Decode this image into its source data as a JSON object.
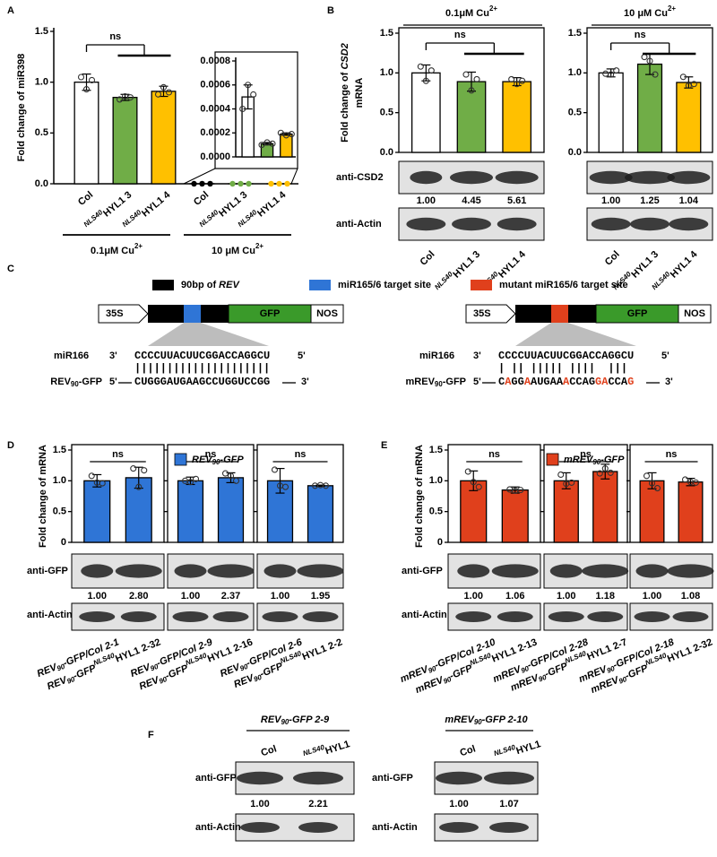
{
  "panels": {
    "A": {
      "letter": "A",
      "groups": [
        {
          "t": "0.1μM Cu",
          "sup": "2+"
        },
        {
          "t": "10 μM Cu",
          "sup": "2+"
        }
      ]
    },
    "B": {
      "letter": "B",
      "headers": [
        {
          "t": "0.1μM Cu",
          "sup": "2+"
        },
        {
          "t": "10 μM Cu",
          "sup": "2+"
        }
      ],
      "antibodies": [
        "anti-CSD2",
        "anti-Actin"
      ],
      "quantities": [
        [
          "1.00",
          "4.45",
          "5.61"
        ],
        [
          "1.00",
          "1.25",
          "1.04"
        ]
      ]
    },
    "C": {
      "letter": "C",
      "legend": [
        {
          "color": "#000000",
          "label": {
            "t": "90bp of ",
            "i": "REV"
          }
        },
        {
          "color": "#2f75d6",
          "label": "miR165/6 target site"
        },
        {
          "color": "#e0401c",
          "label": "mutant miR165/6 target site"
        }
      ],
      "constructs": [
        {
          "promoter": "35S",
          "reporter": "GFP",
          "terminator": "NOS",
          "site_color": "#2f75d6"
        },
        {
          "promoter": "35S",
          "reporter": "GFP",
          "terminator": "NOS",
          "site_color": "#e0401c"
        }
      ],
      "alignments": [
        {
          "mirna": {
            "name": "miR166",
            "end_left": "3'",
            "seq": "CCCCUUACUUCGGACCAGGCU",
            "end_right": "5'"
          },
          "pairing": "|||||||||||||||||||||",
          "target": {
            "name": {
              "t": "REV",
              "sub": "90",
              "t2": "-GFP"
            },
            "end_left": "5'",
            "seq": [
              "CUGGGAUGAAGCCUGGUCCGG"
            ],
            "end_right": "3'"
          }
        },
        {
          "mirna": {
            "name": "miR166",
            "end_left": "3'",
            "seq": "CCCCUUACUUCGGACCAGGCU",
            "end_right": "5'"
          },
          "pairing": "| || ||||| ||||  |||",
          "target": {
            "name": {
              "t": "mREV",
              "sub": "90",
              "t2": "-GFP"
            },
            "end_left": "5'",
            "seq": [
              "C",
              "A",
              "GG",
              "A",
              "AUGAA",
              "A",
              "CCAG",
              "GA",
              "CCA",
              "G"
            ],
            "end_right": "3'"
          }
        }
      ]
    },
    "D": {
      "letter": "D",
      "legend": {
        "color": "#2f75d6",
        "label": {
          "i": "REV",
          "isub": "90",
          "i2": "-GFP"
        }
      },
      "antibodies": [
        "anti-GFP",
        "anti-Actin"
      ],
      "quantities": [
        [
          "1.00",
          "2.80"
        ],
        [
          "1.00",
          "2.37"
        ],
        [
          "1.00",
          "1.95"
        ]
      ]
    },
    "E": {
      "letter": "E",
      "legend": {
        "color": "#e0401c",
        "label": {
          "i": "mREV",
          "isub": "90",
          "i2": "-GFP"
        }
      },
      "antibodies": [
        "anti-GFP",
        "anti-Actin"
      ],
      "quantities": [
        [
          "1.00",
          "1.06"
        ],
        [
          "1.00",
          "1.18"
        ],
        [
          "1.00",
          "1.08"
        ]
      ]
    },
    "F": {
      "letter": "F",
      "headers": [
        {
          "i": "REV",
          "isub": "90",
          "i2": "-GFP  2-9"
        },
        {
          "i": "mREV",
          "isub": "90",
          "i2": "-GFP  2-10"
        }
      ],
      "lanes": [
        [
          "Col",
          {
            "isup": "NLS40",
            "t": "HYL1"
          }
        ],
        [
          "Col",
          {
            "isup": "NLS40",
            "t": "HYL1"
          }
        ]
      ],
      "antibodies": [
        [
          "anti-GFP",
          "anti-Actin"
        ],
        [
          "anti-GFP",
          "anti-Actin"
        ]
      ],
      "quantities": [
        [
          "1.00",
          "2.21"
        ],
        [
          "1.00",
          "1.07"
        ]
      ]
    }
  },
  "chart_data": [
    {
      "type": "bar",
      "ylabel": "Fold change of miR398",
      "categories": [
        "Col",
        {
          "isup": "NLS40",
          "t": "HYL1 3"
        },
        {
          "isup": "NLS40",
          "t": "HYL1 4"
        },
        "Col",
        {
          "isup": "NLS40",
          "t": "HYL1 3"
        },
        {
          "isup": "NLS40",
          "t": "HYL1 4"
        }
      ],
      "values": [
        1.0,
        0.85,
        0.91,
        0.0005,
        0.00011,
        0.00019
      ],
      "errors": [
        0.08,
        0.03,
        0.05,
        0.0001,
        1e-05,
        1e-05
      ],
      "points": [
        [
          1.05,
          0.93,
          1.02
        ],
        [
          0.83,
          0.86,
          0.85
        ],
        [
          0.88,
          0.95,
          0.9
        ],
        [
          0.0004,
          0.0006,
          0.00052
        ],
        [
          0.0001,
          0.00012,
          0.00011
        ],
        [
          0.0002,
          0.00018,
          0.00019
        ]
      ],
      "colors": [
        "#ffffff",
        "#70ad47",
        "#ffc000",
        "#ffffff",
        "#70ad47",
        "#ffc000"
      ],
      "ylim": [
        0,
        1.5
      ],
      "yticks": [
        {
          "value": 0,
          "label": "0.0"
        },
        0.5,
        {
          "value": 1,
          "label": "1.0"
        },
        1.5
      ],
      "significance": "ns"
    },
    {
      "type": "bar",
      "categories": [
        null,
        null,
        null
      ],
      "values": [
        0.0005,
        0.00011,
        0.00019
      ],
      "errors": [
        0.0001,
        1e-05,
        1e-05
      ],
      "points": [
        [
          0.0004,
          0.0006,
          0.00052
        ],
        [
          0.0001,
          0.00012,
          0.00011
        ],
        [
          0.0002,
          0.00018,
          0.00019
        ]
      ],
      "colors": [
        "#ffffff",
        "#70ad47",
        "#ffc000"
      ],
      "ylim": [
        0,
        0.0008
      ],
      "yticks": [
        {
          "value": 0,
          "label": "0.0000"
        },
        {
          "value": 0.0002,
          "label": "0.0002"
        },
        {
          "value": 0.0004,
          "label": "0.0004"
        },
        {
          "value": 0.0006,
          "label": "0.0006"
        },
        {
          "value": 0.0008,
          "label": "0.0008"
        }
      ]
    },
    {
      "type": "bar",
      "ylabel": [
        {
          "t": "Fold change of ",
          "i": "CSD2"
        },
        "mRNA"
      ],
      "categories": [
        "Col",
        {
          "isup": "NLS40",
          "t": "HYL1 3"
        },
        {
          "isup": "NLS40",
          "t": "HYL1 4"
        }
      ],
      "values": [
        1.0,
        0.89,
        0.89
      ],
      "errors": [
        0.1,
        0.12,
        0.05
      ],
      "points": [
        [
          1.08,
          0.9,
          1.03
        ],
        [
          0.98,
          0.78,
          0.92
        ],
        [
          0.92,
          0.86,
          0.9
        ]
      ],
      "colors": [
        "#ffffff",
        "#70ad47",
        "#ffc000"
      ],
      "ylim": [
        0,
        1.5
      ],
      "yticks": [
        {
          "value": 0,
          "label": "0.0"
        },
        0.5,
        {
          "value": 1,
          "label": "1.0"
        },
        1.5
      ],
      "significance": "ns"
    },
    {
      "type": "bar",
      "categories": [
        "Col",
        {
          "isup": "NLS40",
          "t": "HYL1 3"
        },
        {
          "isup": "NLS40",
          "t": "HYL1 4"
        }
      ],
      "values": [
        1.0,
        1.11,
        0.88
      ],
      "errors": [
        0.05,
        0.13,
        0.07
      ],
      "points": [
        [
          0.99,
          0.98,
          1.03
        ],
        [
          1.2,
          1.15,
          0.98
        ],
        [
          0.95,
          0.84,
          0.86
        ]
      ],
      "colors": [
        "#ffffff",
        "#70ad47",
        "#ffc000"
      ],
      "ylim": [
        0,
        1.5
      ],
      "yticks": [
        {
          "value": 0,
          "label": "0.0"
        },
        0.5,
        {
          "value": 1,
          "label": "1.0"
        },
        1.5
      ],
      "significance": "ns"
    },
    {
      "type": "bar",
      "ylabel": "Fold change of mRNA",
      "categories": [
        {
          "i": "REV",
          "isub": "90",
          "i2": "-GFP/Col 2-1"
        },
        {
          "i": "REV",
          "isub": "90",
          "i2": "-GFP",
          "isup": "NLS40",
          "t": "HYL1 2-32"
        }
      ],
      "values": [
        1.0,
        1.05
      ],
      "errors": [
        0.1,
        0.17
      ],
      "points": [
        [
          1.08,
          0.97,
          0.96
        ],
        [
          1.2,
          0.9,
          1.17
        ]
      ],
      "colors": [
        "#2f75d6",
        "#2f75d6"
      ],
      "ylim": [
        0,
        1.5
      ],
      "yticks": [
        0,
        0.5,
        {
          "value": 1,
          "label": "1.0"
        },
        1.5
      ],
      "significance": "ns"
    },
    {
      "type": "bar",
      "categories": [
        {
          "i": "REV",
          "isub": "90",
          "i2": "-GFP/Col 2-9"
        },
        {
          "i": "REV",
          "isub": "90",
          "i2": "-GFP",
          "isup": "NLS40",
          "t": "HYL1 2-16"
        }
      ],
      "values": [
        1.0,
        1.05
      ],
      "errors": [
        0.06,
        0.08
      ],
      "points": [
        [
          1.0,
          0.98,
          1.03
        ],
        [
          1.12,
          1.08,
          1.0
        ]
      ],
      "colors": [
        "#2f75d6",
        "#2f75d6"
      ],
      "ylim": [
        0,
        1.5
      ],
      "yticks": [
        0,
        0.5,
        {
          "value": 1,
          "label": "1.0"
        },
        1.5
      ],
      "significance": "ns"
    },
    {
      "type": "bar",
      "categories": [
        {
          "i": "REV",
          "isub": "90",
          "i2": "-GFP/Col 2-6"
        },
        {
          "i": "REV",
          "isub": "90",
          "i2": "-GFP",
          "isup": "NLS40",
          "t": "HYL1 2-2"
        }
      ],
      "values": [
        1.0,
        0.92
      ],
      "errors": [
        0.2,
        0.01
      ],
      "points": [
        [
          1.18,
          0.92,
          0.9
        ],
        [
          0.92,
          0.93,
          0.92
        ]
      ],
      "colors": [
        "#2f75d6",
        "#2f75d6"
      ],
      "ylim": [
        0,
        1.5
      ],
      "yticks": [
        0,
        0.5,
        {
          "value": 1,
          "label": "1.0"
        },
        1.5
      ],
      "significance": "ns"
    },
    {
      "type": "bar",
      "ylabel": "Fold change of mRNA",
      "categories": [
        {
          "i": "mREV",
          "isub": "90",
          "i2": "-GFP/Col 2-10"
        },
        {
          "i": "mREV",
          "isub": "90",
          "i2": "-GFP",
          "isup": "NLS40",
          "t": "HYL1 2-13"
        }
      ],
      "values": [
        1.0,
        0.85
      ],
      "errors": [
        0.16,
        0.05
      ],
      "points": [
        [
          1.15,
          0.98,
          0.9
        ],
        [
          0.86,
          0.84,
          0.85
        ]
      ],
      "colors": [
        "#e0401c",
        "#e0401c"
      ],
      "ylim": [
        0,
        1.5
      ],
      "yticks": [
        0,
        0.5,
        {
          "value": 1,
          "label": "1.0"
        },
        1.5
      ],
      "significance": "ns"
    },
    {
      "type": "bar",
      "categories": [
        {
          "i": "mREV",
          "isub": "90",
          "i2": "-GFP/Col 2-28"
        },
        {
          "i": "mREV",
          "isub": "90",
          "i2": "-GFP",
          "isup": "NLS40",
          "t": "HYL1 2-7"
        }
      ],
      "values": [
        1.0,
        1.15
      ],
      "errors": [
        0.13,
        0.12
      ],
      "points": [
        [
          1.1,
          0.95,
          0.97
        ],
        [
          1.12,
          1.2,
          1.13
        ]
      ],
      "colors": [
        "#e0401c",
        "#e0401c"
      ],
      "ylim": [
        0,
        1.5
      ],
      "yticks": [
        0,
        0.5,
        {
          "value": 1,
          "label": "1.0"
        },
        1.5
      ],
      "significance": "ns"
    },
    {
      "type": "bar",
      "categories": [
        {
          "i": "mREV",
          "isub": "90",
          "i2": "-GFP/Col 2-18"
        },
        {
          "i": "mREV",
          "isub": "90",
          "i2": "-GFP",
          "isup": "NLS40",
          "t": "HYL1 2-32"
        }
      ],
      "values": [
        1.0,
        0.98
      ],
      "errors": [
        0.13,
        0.06
      ],
      "points": [
        [
          1.08,
          0.96,
          0.88
        ],
        [
          1.02,
          0.98,
          0.97
        ]
      ],
      "colors": [
        "#e0401c",
        "#e0401c"
      ],
      "ylim": [
        0,
        1.5
      ],
      "yticks": [
        0,
        0.5,
        {
          "value": 1,
          "label": "1.0"
        },
        1.5
      ],
      "significance": "ns"
    }
  ]
}
